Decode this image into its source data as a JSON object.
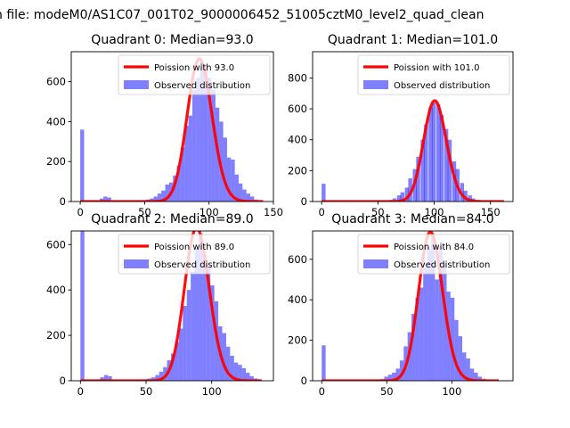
{
  "figure": {
    "suptitle": "n file: modeM0/AS1C07_001T02_9000006452_51005cztM0_level2_quad_clean"
  },
  "colors": {
    "poisson_line": "#ff0000",
    "hist_fill": "#0000ff",
    "hist_opacity": 0.5,
    "axis": "#000000",
    "background": "#ffffff"
  },
  "chart_data": [
    {
      "type": "bar",
      "title": "Quadrant 0: Median=93.0",
      "median": 93.0,
      "xlim": [
        -7,
        150
      ],
      "ylim": [
        0,
        750
      ],
      "xticks": [
        0,
        50,
        100,
        150
      ],
      "yticks": [
        0,
        200,
        400,
        600
      ],
      "legend": [
        "Poission with 93.0",
        "Observed distribution"
      ],
      "legend_position": "upper right",
      "bin_width": 3,
      "hist": {
        "x": [
          0,
          15,
          18,
          21,
          42,
          45,
          48,
          51,
          54,
          57,
          60,
          63,
          66,
          69,
          72,
          75,
          78,
          81,
          84,
          87,
          90,
          93,
          96,
          99,
          102,
          105,
          108,
          111,
          114,
          117,
          120,
          123,
          126,
          129,
          132,
          135,
          138,
          141
        ],
        "counts": [
          360,
          15,
          25,
          20,
          3,
          4,
          6,
          10,
          15,
          25,
          40,
          55,
          85,
          95,
          130,
          180,
          270,
          380,
          430,
          560,
          620,
          700,
          690,
          620,
          560,
          470,
          400,
          320,
          220,
          210,
          135,
          90,
          60,
          40,
          25,
          10,
          5,
          2
        ]
      },
      "poisson": {
        "mean": 93.0,
        "x_range": [
          0,
          142
        ]
      }
    },
    {
      "type": "bar",
      "title": "Quadrant 1: Median=101.0",
      "median": 101.0,
      "xlim": [
        -8,
        170
      ],
      "ylim": [
        0,
        970
      ],
      "xticks": [
        0,
        50,
        100,
        150
      ],
      "yticks": [
        0,
        200,
        400,
        600,
        800
      ],
      "legend": [
        "Poission with 101.0",
        "Observed distribution"
      ],
      "legend_position": "upper right",
      "bin_width": 3.5,
      "hist": {
        "x": [
          0,
          52,
          56,
          60,
          63,
          67,
          70,
          74,
          77,
          81,
          84,
          88,
          91,
          95,
          98,
          102,
          105,
          109,
          112,
          116,
          119,
          123,
          126,
          130,
          133,
          137,
          140,
          144,
          147
        ],
        "counts": [
          115,
          2,
          4,
          10,
          20,
          40,
          60,
          90,
          150,
          210,
          290,
          400,
          500,
          610,
          640,
          630,
          560,
          470,
          400,
          260,
          210,
          120,
          70,
          40,
          20,
          10,
          6,
          3,
          2
        ]
      },
      "poisson": {
        "mean": 101.0,
        "x_range": [
          0,
          162
        ]
      }
    },
    {
      "type": "bar",
      "title": "Quadrant 2: Median=89.0",
      "median": 89.0,
      "xlim": [
        -7,
        147
      ],
      "ylim": [
        0,
        660
      ],
      "xticks": [
        0,
        50,
        100
      ],
      "yticks": [
        0,
        200,
        400,
        600
      ],
      "legend": [
        "Poission with 89.0",
        "Observed distribution"
      ],
      "legend_position": "upper right",
      "bin_width": 3,
      "hist": {
        "x": [
          0,
          15,
          18,
          21,
          42,
          45,
          48,
          51,
          54,
          57,
          60,
          63,
          66,
          69,
          72,
          75,
          78,
          81,
          84,
          87,
          90,
          93,
          96,
          99,
          102,
          105,
          108,
          111,
          114,
          117,
          120,
          123,
          126,
          129,
          132,
          135
        ],
        "counts": [
          660,
          15,
          25,
          20,
          3,
          4,
          6,
          10,
          15,
          25,
          40,
          60,
          90,
          120,
          170,
          230,
          330,
          400,
          480,
          580,
          650,
          560,
          500,
          420,
          350,
          240,
          210,
          150,
          110,
          80,
          70,
          55,
          35,
          20,
          10,
          5
        ]
      },
      "poisson": {
        "mean": 89.0,
        "x_range": [
          0,
          138
        ]
      }
    },
    {
      "type": "bar",
      "title": "Quadrant 3: Median=84.0",
      "median": 84.0,
      "xlim": [
        -7,
        147
      ],
      "ylim": [
        0,
        740
      ],
      "xticks": [
        0,
        50,
        100
      ],
      "yticks": [
        0,
        200,
        400,
        600
      ],
      "legend": [
        "Poission with 84.0",
        "Observed distribution"
      ],
      "legend_position": "upper right",
      "bin_width": 3,
      "hist": {
        "x": [
          0,
          39,
          42,
          45,
          48,
          51,
          54,
          57,
          60,
          63,
          66,
          69,
          72,
          75,
          78,
          81,
          84,
          87,
          90,
          93,
          96,
          99,
          102,
          105,
          108,
          111,
          114,
          117,
          120,
          123,
          126
        ],
        "counts": [
          175,
          3,
          5,
          8,
          20,
          30,
          40,
          60,
          100,
          170,
          240,
          330,
          410,
          460,
          560,
          660,
          720,
          500,
          660,
          580,
          440,
          410,
          300,
          220,
          140,
          110,
          60,
          40,
          20,
          10,
          4
        ]
      },
      "poisson": {
        "mean": 84.0,
        "x_range": [
          0,
          136
        ]
      }
    }
  ]
}
